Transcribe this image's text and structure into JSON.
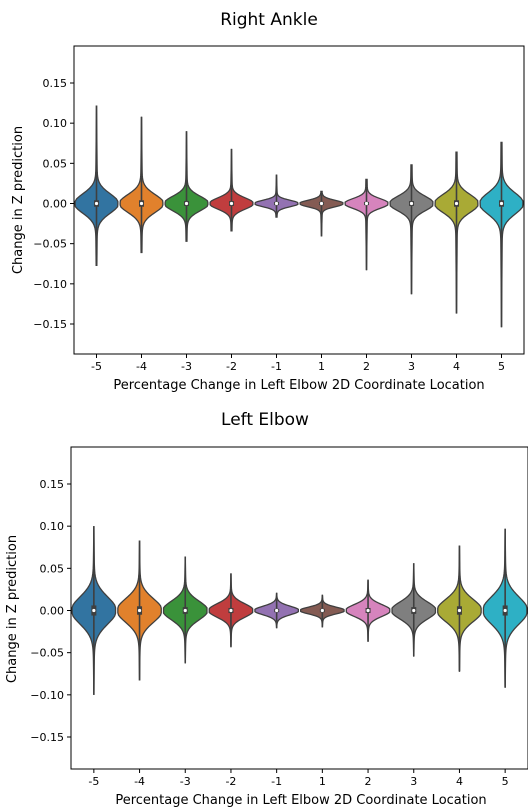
{
  "chart_data": [
    {
      "type": "violin",
      "title": "Right Ankle",
      "xlabel": "Percentage Change in Left Elbow 2D Coordinate Location",
      "ylabel": "Change in Z prediction",
      "ylim": [
        -0.19,
        0.195
      ],
      "yticks": [
        "0.15",
        "0.10",
        "0.05",
        "0.00",
        "−0.05",
        "−0.10",
        "−0.15"
      ],
      "ytick_values": [
        0.15,
        0.1,
        0.05,
        0.0,
        -0.05,
        -0.1,
        -0.15
      ],
      "categories": [
        "-5",
        "-4",
        "-3",
        "-2",
        "-1",
        "1",
        "2",
        "3",
        "4",
        "5"
      ],
      "grid": false,
      "series": [
        {
          "min": -0.077,
          "max": 0.122,
          "spread": 0.012,
          "q1": -0.004,
          "q3": 0.004
        },
        {
          "min": -0.061,
          "max": 0.108,
          "spread": 0.011,
          "q1": -0.004,
          "q3": 0.004
        },
        {
          "min": -0.047,
          "max": 0.09,
          "spread": 0.009,
          "q1": -0.003,
          "q3": 0.003
        },
        {
          "min": -0.034,
          "max": 0.068,
          "spread": 0.007,
          "q1": -0.003,
          "q3": 0.003
        },
        {
          "min": -0.017,
          "max": 0.036,
          "spread": 0.004,
          "q1": -0.002,
          "q3": 0.002
        },
        {
          "min": -0.041,
          "max": 0.015,
          "spread": 0.004,
          "q1": -0.002,
          "q3": 0.002
        },
        {
          "min": -0.083,
          "max": 0.03,
          "spread": 0.006,
          "q1": -0.002,
          "q3": 0.002
        },
        {
          "min": -0.113,
          "max": 0.048,
          "spread": 0.009,
          "q1": -0.003,
          "q3": 0.003
        },
        {
          "min": -0.137,
          "max": 0.064,
          "spread": 0.011,
          "q1": -0.004,
          "q3": 0.004
        },
        {
          "min": -0.154,
          "max": 0.076,
          "spread": 0.013,
          "q1": -0.004,
          "q3": 0.004
        }
      ]
    },
    {
      "type": "violin",
      "title": "Left Elbow",
      "xlabel": "Percentage Change in Left Elbow 2D Coordinate Location",
      "ylabel": "Change in Z prediction",
      "ylim": [
        -0.185,
        0.195
      ],
      "yticks": [
        "0.15",
        "0.10",
        "0.05",
        "0.00",
        "−0.05",
        "−0.10",
        "−0.15"
      ],
      "ytick_values": [
        0.15,
        0.1,
        0.05,
        0.0,
        -0.05,
        -0.1,
        -0.15
      ],
      "categories": [
        "-5",
        "-4",
        "-3",
        "-2",
        "-1",
        "1",
        "2",
        "3",
        "4",
        "5"
      ],
      "grid": false,
      "series": [
        {
          "min": -0.1,
          "max": 0.1,
          "spread": 0.016,
          "q1": -0.006,
          "q3": 0.006
        },
        {
          "min": -0.083,
          "max": 0.083,
          "spread": 0.014,
          "q1": -0.005,
          "q3": 0.005
        },
        {
          "min": -0.062,
          "max": 0.064,
          "spread": 0.011,
          "q1": -0.004,
          "q3": 0.004
        },
        {
          "min": -0.043,
          "max": 0.044,
          "spread": 0.008,
          "q1": -0.003,
          "q3": 0.003
        },
        {
          "min": -0.021,
          "max": 0.021,
          "spread": 0.005,
          "q1": -0.002,
          "q3": 0.002
        },
        {
          "min": -0.02,
          "max": 0.018,
          "spread": 0.004,
          "q1": -0.002,
          "q3": 0.002
        },
        {
          "min": -0.037,
          "max": 0.036,
          "spread": 0.007,
          "q1": -0.003,
          "q3": 0.003
        },
        {
          "min": -0.054,
          "max": 0.056,
          "spread": 0.01,
          "q1": -0.004,
          "q3": 0.004
        },
        {
          "min": -0.072,
          "max": 0.077,
          "spread": 0.013,
          "q1": -0.005,
          "q3": 0.005
        },
        {
          "min": -0.091,
          "max": 0.097,
          "spread": 0.016,
          "q1": -0.006,
          "q3": 0.006
        }
      ]
    }
  ],
  "palette": [
    "#3274a1",
    "#e1812c",
    "#3a923a",
    "#c03d3e",
    "#9372b2",
    "#845b53",
    "#d684bd",
    "#7f7f7f",
    "#a9aa35",
    "#2eb0c5"
  ]
}
